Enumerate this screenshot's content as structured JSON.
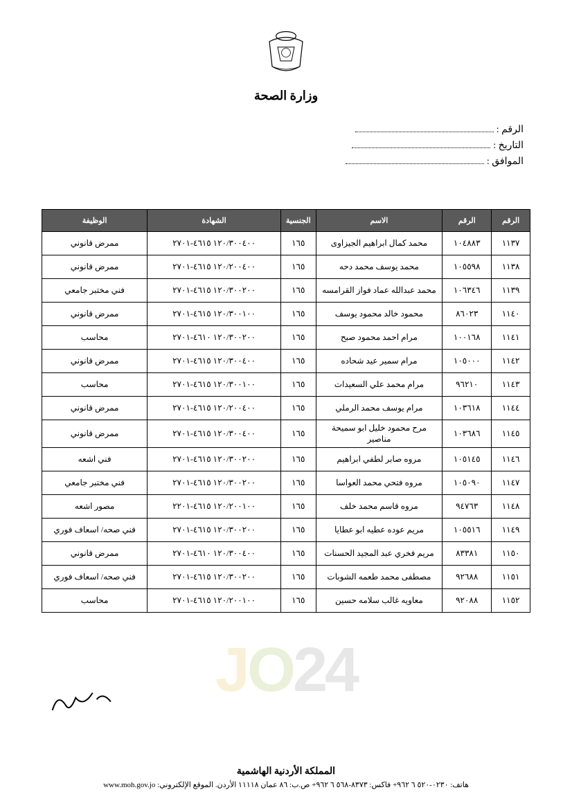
{
  "header": {
    "ministry_title": "وزارة الصحة"
  },
  "form": {
    "number_label": "الرقم :",
    "date_label": "التاريخ :",
    "approval_label": "الموافق :"
  },
  "table": {
    "headers": {
      "seq": "الرقم",
      "id": "الرقم",
      "name": "الاسم",
      "nat": "الجنسية",
      "code": "الشهادة",
      "job": "الوظيفة"
    },
    "rows": [
      {
        "seq": "١١٣٧",
        "id": "١٠٤٨٨٣",
        "name": "محمد كمال ابراهيم الجيزاوى",
        "nat": "١٦٥",
        "code": "١٢٠/٣٠٠٤٠٠ ٤٦١٥-٢٧٠١",
        "job": "ممرض قانوني"
      },
      {
        "seq": "١١٣٨",
        "id": "١٠٥٥٩٨",
        "name": "محمد يوسف محمد دحه",
        "nat": "١٦٥",
        "code": "١٢٠/٢٠٠٤٠٠ ٤٦١٥-٢٧٠١",
        "job": "ممرض قانوني"
      },
      {
        "seq": "١١٣٩",
        "id": "١٠٦٣٤٦",
        "name": "محمد عبدالله عماد فواز القرامسه",
        "nat": "١٦٥",
        "code": "١٢٠/٣٠٠٢٠٠ ٤٦١٥-٢٧٠١",
        "job": "فني مختبر جامعي"
      },
      {
        "seq": "١١٤٠",
        "id": "٨٦٠٢٣",
        "name": "محمود خالد محمود يوسف",
        "nat": "١٦٥",
        "code": "١٢٠/٣٠٠١٠٠ ٤٦١٥-٢٧٠١",
        "job": "ممرض قانوني"
      },
      {
        "seq": "١١٤١",
        "id": "١٠٠١٦٨",
        "name": "مرام احمد محمود صبح",
        "nat": "١٦٥",
        "code": "١٢٠/٣٠٠٢٠٠ ٤٦١٠-٢٧٠١",
        "job": "محاسب"
      },
      {
        "seq": "١١٤٢",
        "id": "١٠٥٠٠٠",
        "name": "مرام سمير عيد شحاده",
        "nat": "١٦٥",
        "code": "١٢٠/٣٠٠٤٠٠ ٤٦١٥-٢٧٠١",
        "job": "ممرض قانوني"
      },
      {
        "seq": "١١٤٣",
        "id": "٩٦٢١٠",
        "name": "مرام محمد علي السعيدات",
        "nat": "١٦٥",
        "code": "١٢٠/٣٠٠١٠٠ ٤٦١٥-٢٧٠١",
        "job": "محاسب"
      },
      {
        "seq": "١١٤٤",
        "id": "١٠٣٦١٨",
        "name": "مرام يوسف محمد الرملي",
        "nat": "١٦٥",
        "code": "١٢٠/٢٠٠٤٠٠ ٤٦١٥-٢٧٠١",
        "job": "ممرض قانوني"
      },
      {
        "seq": "١١٤٥",
        "id": "١٠٣٦٨٦",
        "name": "مرح محمود خليل ابو سميحة مناصير",
        "nat": "١٦٥",
        "code": "١٢٠/٣٠٠٤٠٠ ٤٦١٥-٢٧٠١",
        "job": "ممرض قانوني"
      },
      {
        "seq": "١١٤٦",
        "id": "١٠٥١٤٥",
        "name": "مروه صابر لطفي ابراهيم",
        "nat": "١٦٥",
        "code": "١٢٠/٣٠٠٢٠٠ ٤٦١٥-٢٧٠١",
        "job": "فني اشعه"
      },
      {
        "seq": "١١٤٧",
        "id": "١٠٥٠٩٠",
        "name": "مروه فتحي محمد العواسا",
        "nat": "١٦٥",
        "code": "١٢٠/٣٠٠٢٠٠ ٤٦١٥-٢٧٠١",
        "job": "فني مختبر جامعي"
      },
      {
        "seq": "١١٤٨",
        "id": "٩٤٧٦٣",
        "name": "مروه قاسم محمد خلف",
        "nat": "١٦٥",
        "code": "١٢٠/٢٠٠١٠٠ ٤٦١٥-٢٢٠١",
        "job": "مصور اشعه"
      },
      {
        "seq": "١١٤٩",
        "id": "١٠٥٥١٦",
        "name": "مريم عوده عطيه ابو عطايا",
        "nat": "١٦٥",
        "code": "١٢٠/٣٠٠٢٠٠ ٤٦١٥-٢٧٠١",
        "job": "فني صحه/ اسعاف فوري"
      },
      {
        "seq": "١١٥٠",
        "id": "٨٣٣٨١",
        "name": "مريم فخري عبد المجيد الحسنات",
        "nat": "١٦٥",
        "code": "١٢٠/٣٠٠٤٠٠ ٤٦١٠-٢٧٠١",
        "job": "ممرض قانوني"
      },
      {
        "seq": "١١٥١",
        "id": "٩٢٦٨٨",
        "name": "مصطفى محمد طعمه الشوبات",
        "nat": "١٦٥",
        "code": "١٢٠/٣٠٠٢٠٠ ٤٦١٥-٢٧٠١",
        "job": "فني صحه/ اسعاف فوري"
      },
      {
        "seq": "١١٥٢",
        "id": "٩٢٠٨٨",
        "name": "معاويه غالب سلامه حسين",
        "nat": "١٦٥",
        "code": "١٢٠/٢٠٠١٠٠ ٤٦١٥-٢٧٠١",
        "job": "محاسب"
      }
    ]
  },
  "footer": {
    "kingdom": "المملكة الأردنية الهاشمية",
    "contact": "هاتف: ٠٢٣٠-٥٢٠ ٦ ٩٦٢+ فاكس: ٨٣٧٣-٥٦٨ ٦ ٩٦٢+ ص.ب: ٨٦ عمان ١١١١٨ الأردن. الموقع الإلكتروني: www.moh.gov.jo"
  },
  "style": {
    "header_bg": "#5a5a5a",
    "header_fg": "#ffffff",
    "border_color": "#000000",
    "text_color": "#000000",
    "page_bg": "#ffffff"
  }
}
